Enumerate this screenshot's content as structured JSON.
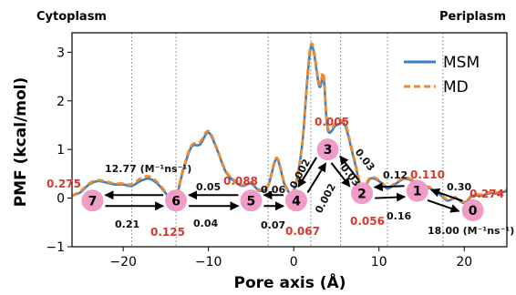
{
  "chart_data": {
    "type": "line",
    "side_labels": {
      "left": "Cytoplasm",
      "right": "Periplasm"
    },
    "xlabel": "Pore axis (Å)",
    "ylabel": "PMF (kcal/mol)",
    "xlim": [
      -26,
      25
    ],
    "ylim": [
      -1,
      3.4
    ],
    "xticks": [
      -20,
      -10,
      0,
      10,
      20
    ],
    "xtick_labels": [
      "−20",
      "−10",
      "0",
      "10",
      "20"
    ],
    "yticks": [
      -1,
      0,
      1,
      2,
      3
    ],
    "ytick_labels": [
      "−1",
      "0",
      "1",
      "2",
      "3"
    ],
    "grid": "vertical dotted lines at state boundaries",
    "boundaries": [
      -19,
      -13.8,
      -3,
      2,
      5.5,
      11,
      17.5
    ],
    "legend": {
      "position": "top-right",
      "entries": [
        {
          "name": "MSM",
          "color": "#3b7fc4",
          "style": "solid"
        },
        {
          "name": "MD",
          "color": "#f28a2b",
          "style": "dashed"
        }
      ]
    },
    "series": [
      {
        "name": "MSM",
        "color": "#3b7fc4",
        "x": [
          -26,
          -25,
          -24,
          -23,
          -22,
          -21,
          -20,
          -19,
          -18,
          -17,
          -16,
          -15,
          -14,
          -13,
          -12,
          -11,
          -10,
          -9,
          -8,
          -7,
          -6,
          -5,
          -4,
          -3,
          -2,
          -1,
          0,
          1,
          2,
          3,
          3.5,
          4,
          5,
          6,
          7,
          8,
          9,
          10,
          11,
          12,
          13,
          14,
          15,
          16,
          17,
          18,
          19,
          20,
          21,
          22,
          23,
          24,
          25
        ],
        "y": [
          0.05,
          0.12,
          0.28,
          0.35,
          0.32,
          0.28,
          0.28,
          0.25,
          0.35,
          0.4,
          0.3,
          0.1,
          -0.1,
          0.55,
          1.05,
          1.1,
          1.35,
          1.0,
          0.55,
          0.35,
          0.25,
          0.3,
          0.15,
          0.25,
          0.8,
          0.25,
          0.15,
          1.1,
          3.1,
          2.3,
          2.5,
          1.4,
          1.5,
          1.5,
          0.85,
          0.2,
          0.4,
          0.35,
          0.2,
          0.3,
          0.4,
          0.35,
          0.25,
          0.2,
          0.1,
          -0.05,
          0.0,
          -0.1,
          0.05,
          0.05,
          0.1,
          0.1,
          0.15
        ]
      },
      {
        "name": "MD",
        "color": "#f28a2b",
        "x": [
          -26,
          -25,
          -24,
          -23,
          -22,
          -21,
          -20,
          -19,
          -18,
          -17,
          -16,
          -15,
          -14,
          -13,
          -12,
          -11,
          -10,
          -9,
          -8,
          -7,
          -6,
          -5,
          -4,
          -3,
          -2,
          -1,
          0,
          1,
          2,
          3,
          3.5,
          4,
          5,
          6,
          7,
          8,
          9,
          10,
          11,
          12,
          13,
          14,
          15,
          16,
          17,
          18,
          19,
          20,
          21,
          22,
          23,
          24,
          25
        ],
        "y": [
          0.05,
          0.14,
          0.3,
          0.37,
          0.34,
          0.3,
          0.3,
          0.28,
          0.4,
          0.45,
          0.33,
          0.12,
          -0.08,
          0.58,
          1.08,
          1.15,
          1.38,
          1.02,
          0.57,
          0.37,
          0.27,
          0.33,
          0.17,
          0.27,
          0.83,
          0.27,
          0.17,
          1.13,
          3.15,
          2.35,
          2.55,
          1.45,
          1.55,
          1.55,
          0.88,
          0.23,
          0.43,
          0.37,
          0.22,
          0.32,
          0.42,
          0.37,
          0.27,
          0.22,
          0.12,
          -0.03,
          0.02,
          -0.08,
          0.07,
          0.07,
          0.12,
          0.12,
          0.17
        ]
      }
    ],
    "states": [
      {
        "id": "7",
        "x": -23.6,
        "y": -0.05,
        "population": "0.275"
      },
      {
        "id": "6",
        "x": -13.8,
        "y": -0.05,
        "population": "0.125"
      },
      {
        "id": "5",
        "x": -5.0,
        "y": -0.05,
        "population": "0.088"
      },
      {
        "id": "4",
        "x": 0.3,
        "y": -0.05,
        "population": "0.067"
      },
      {
        "id": "3",
        "x": 4.0,
        "y": 1.0,
        "population": "0.005"
      },
      {
        "id": "2",
        "x": 8.0,
        "y": 0.1,
        "population": "0.056"
      },
      {
        "id": "1",
        "x": 14.5,
        "y": 0.15,
        "population": "0.110"
      },
      {
        "id": "0",
        "x": 21.0,
        "y": -0.25,
        "population": "0.274"
      }
    ],
    "rates": [
      {
        "label": "12.77 (M⁻¹ns⁻¹)",
        "note": "7 to 6 upper"
      },
      {
        "label": "0.21",
        "note": "6 to 7 lower"
      },
      {
        "label": "0.05",
        "note": "6 to 5 upper"
      },
      {
        "label": "0.04",
        "note": "5 to 6 lower"
      },
      {
        "label": "0.06",
        "note": "5 to 4 upper"
      },
      {
        "label": "0.07",
        "note": "4 to 5 lower"
      },
      {
        "label": "0.002",
        "note": "4 to 3 upper"
      },
      {
        "label": "0.002",
        "note": "3 to 4 lower"
      },
      {
        "label": "0.03",
        "note": "3 to 2 upper"
      },
      {
        "label": "0.03",
        "note": "2 to 3 lower"
      },
      {
        "label": "0.12",
        "note": "2 to 1 upper"
      },
      {
        "label": "0.16",
        "note": "1 to 2 lower"
      },
      {
        "label": "0.30",
        "note": "1 to 0 upper"
      },
      {
        "label": "18.00 (M⁻¹ns⁻¹)",
        "note": "0 to 1 lower"
      }
    ]
  }
}
